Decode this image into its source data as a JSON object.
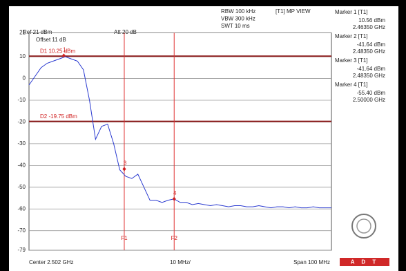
{
  "chart_data": {
    "type": "line",
    "ref_level": "Ref 21 dBm",
    "attenuation": "Att 20 dB",
    "offset": "Offset 11 dB",
    "settings": [
      "RBW 100 kHz",
      "VBW 300 kHz",
      "SWT 10 ms"
    ],
    "view": "[T1] MP VIEW",
    "center": "Center 2.502 GHz",
    "per_div": "10 MHz/",
    "span": "Span 100 MHz",
    "xlim": [
      2.452,
      2.552
    ],
    "ylim": [
      -79,
      21
    ],
    "yticks": [
      21,
      10,
      0,
      -10,
      -20,
      -30,
      -40,
      -50,
      -60,
      -70,
      -79
    ],
    "grid": true,
    "color": "#2a3ad0",
    "x": [
      2.452,
      2.454,
      2.456,
      2.458,
      2.46,
      2.462,
      2.464,
      2.466,
      2.468,
      2.47,
      2.472,
      2.474,
      2.476,
      2.478,
      2.48,
      2.482,
      2.484,
      2.486,
      2.488,
      2.49,
      2.492,
      2.494,
      2.496,
      2.498,
      2.5,
      2.502,
      2.504,
      2.506,
      2.508,
      2.51,
      2.512,
      2.514,
      2.516,
      2.518,
      2.52,
      2.522,
      2.524,
      2.526,
      2.528,
      2.53,
      2.532,
      2.534,
      2.536,
      2.538,
      2.54,
      2.542,
      2.544,
      2.546,
      2.548,
      2.55,
      2.552
    ],
    "values": [
      -3,
      1,
      5,
      7,
      8,
      9,
      10,
      9,
      8,
      4,
      -10,
      -28,
      -22,
      -21,
      -30,
      -42,
      -45,
      -46,
      -44,
      -50,
      -56,
      -56,
      -57,
      -56,
      -55.4,
      -57,
      -57,
      -58,
      -57.5,
      -58,
      -58.5,
      -58,
      -58.5,
      -59,
      -58.5,
      -58.5,
      -59,
      -59,
      -58.5,
      -59,
      -59.5,
      -59,
      -59,
      -59.5,
      -59,
      -59.5,
      -59.5,
      -59,
      -59.5,
      -59.5,
      -59.5
    ],
    "display_lines": [
      {
        "value": 10.25,
        "label": "D1 10.25 dBm"
      },
      {
        "value": -19.75,
        "label": "D2 -19.75 dBm"
      }
    ],
    "display_line_color": "#8b1a1a",
    "frequency_lines": [
      {
        "value": 2.4835,
        "label": "F1"
      },
      {
        "value": 2.5,
        "label": "F2"
      }
    ],
    "frequency_line_color": "#e03030",
    "markers": [
      {
        "name": "Marker 1 [T1]",
        "symbol": "1",
        "x": 2.4635,
        "x_label": "2.46350 GHz",
        "y": 10.56,
        "y_label": "10.56 dBm"
      },
      {
        "name": "Marker 2 [T1]",
        "x": 2.4835,
        "x_label": "2.48350 GHz",
        "y": -41.64,
        "y_label": "-41.64 dBm"
      },
      {
        "name": "Marker 3 [T1]",
        "symbol": "3",
        "x": 2.4835,
        "x_label": "2.48350 GHz",
        "y": -41.64,
        "y_label": "-41.64 dBm"
      },
      {
        "name": "Marker 4 [T1]",
        "symbol": "4",
        "x": 2.5,
        "x_label": "2.50000 GHz",
        "y": -55.4,
        "y_label": "-55.40 dBm"
      }
    ],
    "logo_text": "A D T"
  }
}
